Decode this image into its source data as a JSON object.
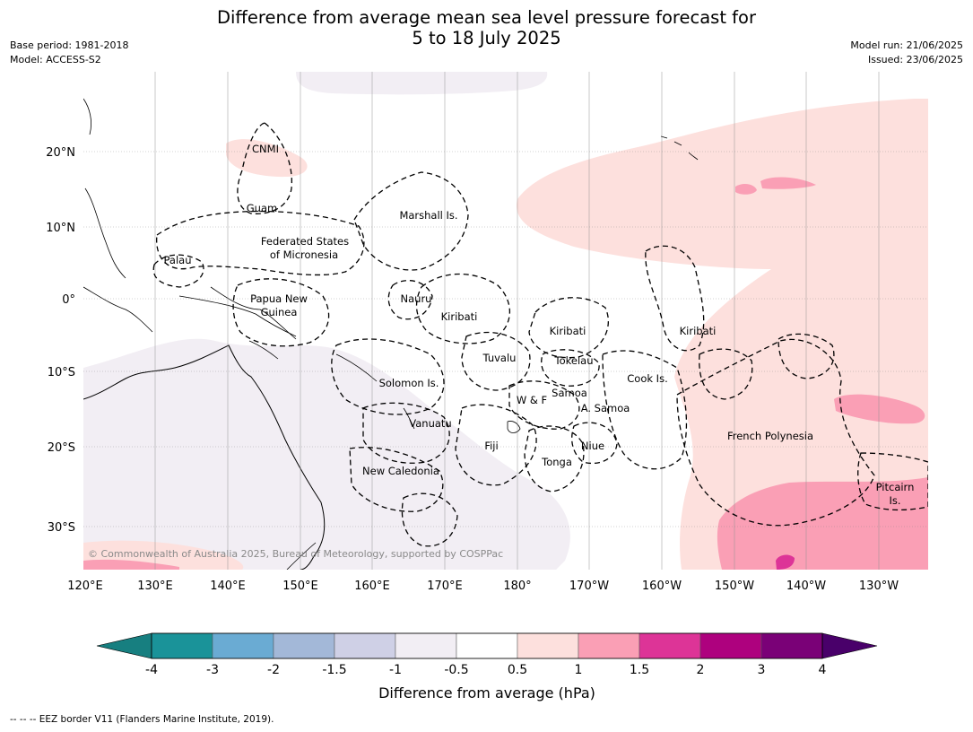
{
  "header": {
    "title_line1": "Difference from average mean sea level pressure forecast for",
    "title_line2": "5 to 18 July 2025",
    "base_period": "Base period: 1981-2018",
    "model": "Model: ACCESS-S2",
    "model_run": "Model run: 21/06/2025",
    "issued": "Issued: 23/06/2025"
  },
  "map": {
    "copyright": "© Commonwealth of Australia 2025, Bureau of Meteorology, supported by COSPPac",
    "lon_labels": [
      "120°E",
      "130°E",
      "140°E",
      "150°E",
      "160°E",
      "170°E",
      "180°",
      "170°W",
      "160°W",
      "150°W",
      "140°W",
      "130°W"
    ],
    "lat_labels": [
      "20°N",
      "10°N",
      "0°",
      "10°S",
      "20°S",
      "30°S"
    ],
    "regions": [
      "CNMI",
      "Guam",
      "Marshall Is.",
      "Federated States",
      "of Micronesia",
      "Palau",
      "Papua New",
      "Guinea",
      "Nauru",
      "Kiribati",
      "Kiribati",
      "Kiribati",
      "Tuvalu",
      "Tokelau",
      "Solomon Is.",
      "Samoa",
      "W & F",
      "A. Samoa",
      "Cook Is.",
      "Vanuatu",
      "Fiji",
      "Niue",
      "Tonga",
      "New Caledonia",
      "French Polynesia",
      "Pitcairn",
      "Is."
    ]
  },
  "colorbar": {
    "ticks": [
      "-4",
      "-3",
      "-2",
      "-1.5",
      "-1",
      "-0.5",
      "0.5",
      "1",
      "1.5",
      "2",
      "3",
      "4"
    ],
    "colors": [
      "#177f80",
      "#1a9399",
      "#6aabd3",
      "#a3b8d8",
      "#cfd0e6",
      "#f2eef4",
      "#ffffff",
      "#fde0dd",
      "#fa9fb5",
      "#dd3497",
      "#ae017e",
      "#7a0177",
      "#49006a"
    ],
    "label": "Difference from average (hPa)"
  },
  "footer": {
    "eez_note": "--  --  -- EEZ border V11 (Flanders Marine Institute, 2019)."
  }
}
